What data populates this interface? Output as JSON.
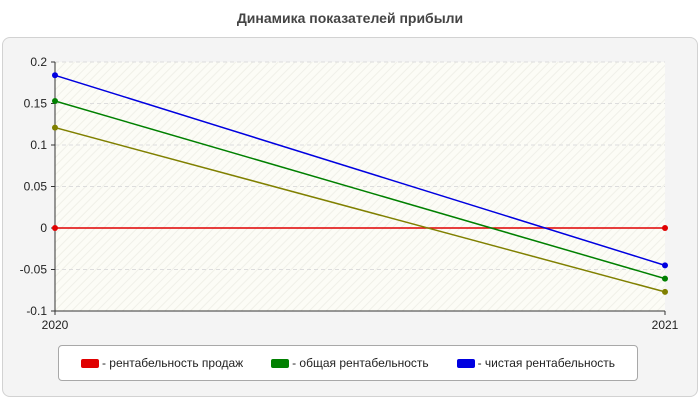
{
  "chart_data": {
    "type": "line",
    "title": "Динамика показателей прибыли",
    "xlabel": "",
    "ylabel": "",
    "categories": [
      "2020",
      "2021"
    ],
    "ylim": [
      -0.1,
      0.2
    ],
    "yticks": [
      "0.2",
      "0.15",
      "0.1",
      "0.05",
      "0",
      "-0.05",
      "-0.1"
    ],
    "grid": true,
    "legend_position": "bottom",
    "series": [
      {
        "name": "- рентабельность продаж",
        "color": "#e00000",
        "values": [
          0,
          0
        ]
      },
      {
        "name": "- общая рентабельность",
        "color": "#008000",
        "values": [
          0.153,
          -0.061
        ]
      },
      {
        "name": "- чистая рентабельность",
        "color": "#0000e0",
        "values": [
          0.184,
          -0.045
        ]
      },
      {
        "name": "",
        "color": "#808000",
        "values": [
          0.121,
          -0.077
        ]
      }
    ]
  }
}
